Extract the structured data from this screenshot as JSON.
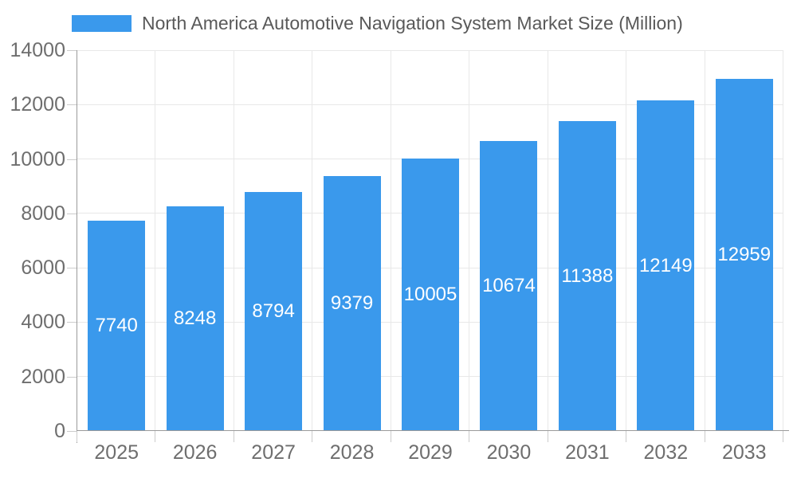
{
  "chart_data": {
    "type": "bar",
    "title": "North America Automotive Navigation System Market Size (Million)",
    "legend": [
      "North America Automotive Navigation System Market Size (Million)"
    ],
    "legend_position": "top-left",
    "categories": [
      "2025",
      "2026",
      "2027",
      "2028",
      "2029",
      "2030",
      "2031",
      "2032",
      "2033"
    ],
    "values": [
      7740,
      8248,
      8794,
      9379,
      10005,
      10674,
      11388,
      12149,
      12959
    ],
    "xlabel": "",
    "ylabel": "",
    "ylim": [
      0,
      14000
    ],
    "ytick_step": 2000,
    "yticks": [
      0,
      2000,
      4000,
      6000,
      8000,
      10000,
      12000,
      14000
    ],
    "grid": true,
    "bar_label_position": "center",
    "colors": {
      "bar": "#3a99ec",
      "bar_label": "#ffffff",
      "gridline": "#e8e8e8",
      "axis_line": "#9a9a9a",
      "tick_mark": "#cccccc",
      "tick_label": "#6e6e6e",
      "legend_text": "#595959",
      "background": "#ffffff"
    }
  }
}
